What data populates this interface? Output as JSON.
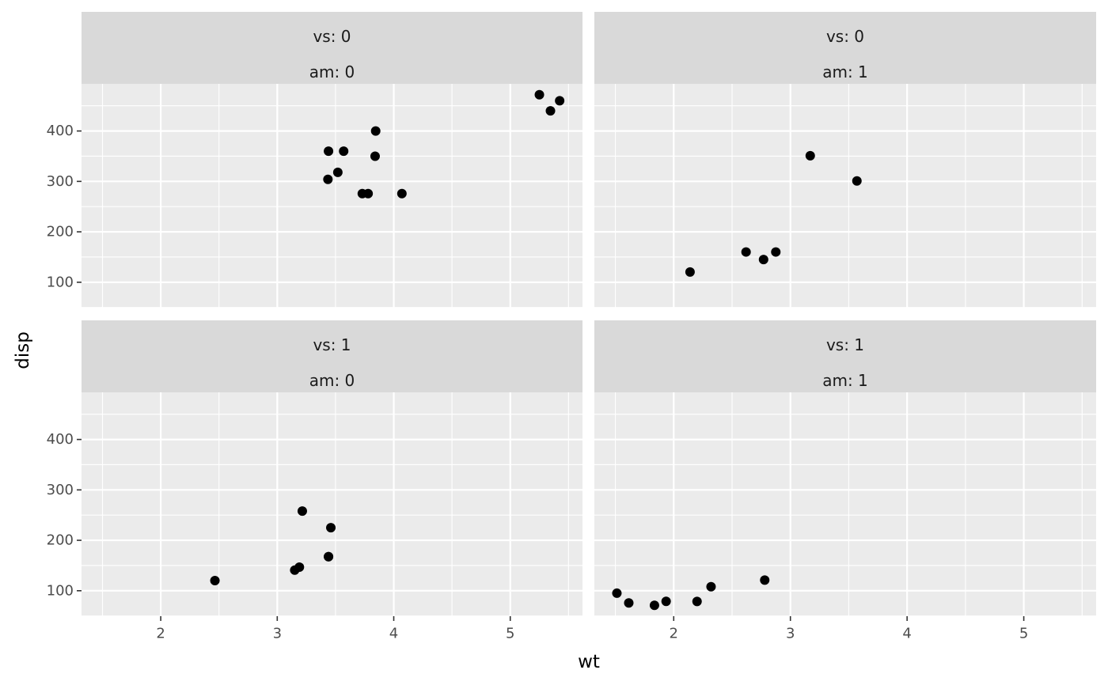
{
  "chart_data": {
    "type": "scatter",
    "xlabel": "wt",
    "ylabel": "disp",
    "xlim": [
      1.32,
      5.62
    ],
    "ylim": [
      49.5,
      493.5
    ],
    "x_ticks": [
      2,
      3,
      4,
      5
    ],
    "y_ticks": [
      100,
      200,
      300,
      400
    ],
    "grid": true,
    "facets": [
      {
        "strip": [
          "vs: 0",
          "am: 0"
        ],
        "points": [
          {
            "x": 3.44,
            "y": 360
          },
          {
            "x": 3.57,
            "y": 360
          },
          {
            "x": 4.07,
            "y": 275.8
          },
          {
            "x": 3.73,
            "y": 275.8
          },
          {
            "x": 3.78,
            "y": 275.8
          },
          {
            "x": 5.25,
            "y": 472
          },
          {
            "x": 5.424,
            "y": 460
          },
          {
            "x": 5.345,
            "y": 440
          },
          {
            "x": 3.52,
            "y": 318
          },
          {
            "x": 3.435,
            "y": 304
          },
          {
            "x": 3.84,
            "y": 350
          },
          {
            "x": 3.845,
            "y": 400
          }
        ]
      },
      {
        "strip": [
          "vs: 0",
          "am: 1"
        ],
        "points": [
          {
            "x": 2.62,
            "y": 160
          },
          {
            "x": 2.875,
            "y": 160
          },
          {
            "x": 2.14,
            "y": 120.3
          },
          {
            "x": 3.17,
            "y": 351
          },
          {
            "x": 2.77,
            "y": 145
          },
          {
            "x": 3.57,
            "y": 301
          }
        ]
      },
      {
        "strip": [
          "vs: 1",
          "am: 0"
        ],
        "points": [
          {
            "x": 3.215,
            "y": 258
          },
          {
            "x": 3.46,
            "y": 225
          },
          {
            "x": 3.19,
            "y": 146.7
          },
          {
            "x": 3.15,
            "y": 140.8
          },
          {
            "x": 3.44,
            "y": 167.6
          },
          {
            "x": 3.44,
            "y": 167.6
          },
          {
            "x": 2.465,
            "y": 120.1
          }
        ]
      },
      {
        "strip": [
          "vs: 1",
          "am: 1"
        ],
        "points": [
          {
            "x": 2.2,
            "y": 78.7
          },
          {
            "x": 1.615,
            "y": 75.7
          },
          {
            "x": 1.835,
            "y": 71.1
          },
          {
            "x": 1.935,
            "y": 79
          },
          {
            "x": 2.32,
            "y": 108
          },
          {
            "x": 1.513,
            "y": 95.1
          },
          {
            "x": 2.78,
            "y": 121
          }
        ]
      }
    ]
  }
}
